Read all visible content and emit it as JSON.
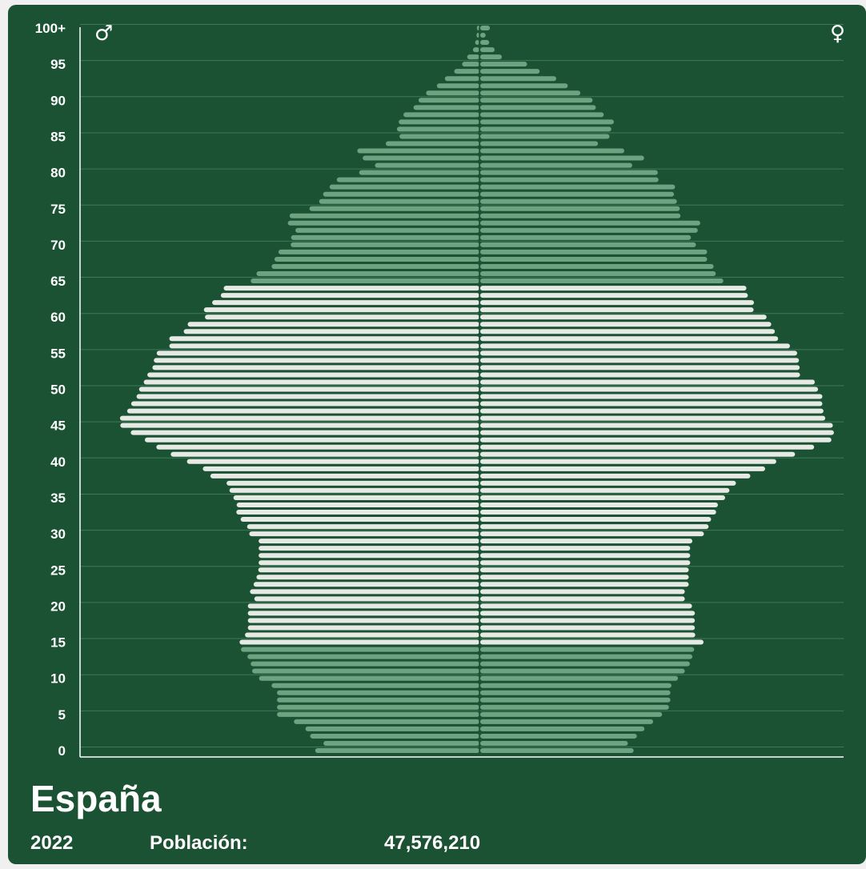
{
  "place": "España",
  "year": "2022",
  "population_label": "Población:",
  "population_value": "47,576,210",
  "symbols": {
    "male": "♂",
    "female": "♀"
  },
  "colors": {
    "background": "#1b5234",
    "young_old_bars": "#6ea382",
    "working_age_bars": "#e6e9e4",
    "grid": "#3d7a55",
    "axis": "#ffffff"
  },
  "chart_data": {
    "type": "bar",
    "orientation": "horizontal-pyramid",
    "age_tick_labels": [
      "0",
      "5",
      "10",
      "15",
      "20",
      "25",
      "30",
      "35",
      "40",
      "45",
      "50",
      "55",
      "60",
      "65",
      "70",
      "75",
      "80",
      "85",
      "90",
      "95",
      "100+"
    ],
    "x_axis": "relative population share, 0–1 of widest bar",
    "grid": true,
    "highlight_ages": [
      15,
      64
    ],
    "series": [
      {
        "name": "♂",
        "values": [
          0.456,
          0.433,
          0.47,
          0.483,
          0.515,
          0.562,
          0.562,
          0.562,
          0.562,
          0.577,
          0.612,
          0.631,
          0.635,
          0.644,
          0.662,
          0.666,
          0.651,
          0.643,
          0.643,
          0.643,
          0.643,
          0.625,
          0.637,
          0.627,
          0.619,
          0.614,
          0.613,
          0.613,
          0.613,
          0.613,
          0.639,
          0.645,
          0.663,
          0.675,
          0.674,
          0.683,
          0.694,
          0.702,
          0.747,
          0.768,
          0.812,
          0.857,
          0.897,
          0.929,
          0.968,
          0.997,
          0.998,
          0.978,
          0.967,
          0.952,
          0.945,
          0.932,
          0.922,
          0.908,
          0.904,
          0.896,
          0.861,
          0.861,
          0.821,
          0.81,
          0.762,
          0.765,
          0.742,
          0.718,
          0.71,
          0.635,
          0.619,
          0.577,
          0.569,
          0.558,
          0.524,
          0.523,
          0.511,
          0.532,
          0.527,
          0.472,
          0.445,
          0.434,
          0.416,
          0.396,
          0.334,
          0.29,
          0.324,
          0.339,
          0.26,
          0.222,
          0.229,
          0.224,
          0.211,
          0.183,
          0.169,
          0.148,
          0.118,
          0.096,
          0.07,
          0.048,
          0.034,
          0.018,
          0.012,
          0.008,
          0.007
        ]
      },
      {
        "name": "♀",
        "values": [
          0.426,
          0.41,
          0.435,
          0.456,
          0.48,
          0.505,
          0.524,
          0.528,
          0.528,
          0.531,
          0.549,
          0.568,
          0.582,
          0.589,
          0.594,
          0.62,
          0.597,
          0.596,
          0.596,
          0.596,
          0.588,
          0.568,
          0.568,
          0.579,
          0.579,
          0.579,
          0.583,
          0.583,
          0.583,
          0.589,
          0.621,
          0.634,
          0.641,
          0.655,
          0.66,
          0.68,
          0.692,
          0.71,
          0.75,
          0.791,
          0.822,
          0.874,
          0.927,
          0.975,
          0.982,
          0.979,
          0.958,
          0.953,
          0.95,
          0.95,
          0.938,
          0.929,
          0.888,
          0.887,
          0.885,
          0.88,
          0.86,
          0.827,
          0.818,
          0.808,
          0.795,
          0.759,
          0.76,
          0.743,
          0.739,
          0.675,
          0.654,
          0.648,
          0.63,
          0.63,
          0.599,
          0.585,
          0.604,
          0.611,
          0.556,
          0.554,
          0.546,
          0.538,
          0.541,
          0.495,
          0.493,
          0.422,
          0.455,
          0.4,
          0.327,
          0.359,
          0.364,
          0.371,
          0.343,
          0.321,
          0.312,
          0.278,
          0.243,
          0.211,
          0.165,
          0.13,
          0.06,
          0.04,
          0.025,
          0.015,
          0.027
        ]
      }
    ]
  }
}
